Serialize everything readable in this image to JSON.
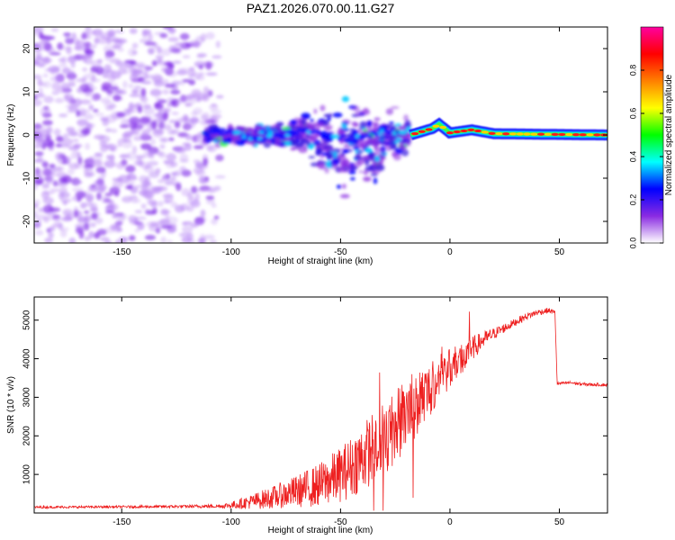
{
  "chart_data": [
    {
      "type": "heatmap",
      "title": "PAZ1.2026.070.00.11.G27",
      "xlabel": "Height of straight line (km)",
      "ylabel": "Frequency (Hz)",
      "xlim": [
        -190,
        72
      ],
      "ylim": [
        -25,
        25
      ],
      "xticks": [
        -150,
        -100,
        -50,
        0,
        50
      ],
      "yticks": [
        -20,
        -10,
        0,
        10,
        20
      ],
      "grid": false,
      "colorbar": {
        "label": "Normalized spectral amplitude",
        "range": [
          0,
          1
        ],
        "ticks": [
          0.0,
          0.2,
          0.4,
          0.6,
          0.8
        ],
        "tick_labels": [
          "0.0",
          "0.2",
          "0.4",
          "0.6",
          "0.8"
        ],
        "colormap": [
          "#ffffff",
          "#8a2be2",
          "#0000ff",
          "#00ffff",
          "#00ff00",
          "#ffff00",
          "#ff8000",
          "#ff0000",
          "#ff00a0"
        ]
      },
      "features": {
        "noise_region_km": [
          -190,
          -115
        ],
        "noise_amplitude": 0.1,
        "turbulent_region_km": [
          -112,
          -18
        ],
        "turbulent_amplitude": 0.35,
        "carrier_line_region_km": [
          -18,
          72
        ],
        "carrier_line_freq_hz": [
          [
            -18,
            0.0
          ],
          [
            -8,
            1.5
          ],
          [
            -5,
            2.5
          ],
          [
            0,
            0.5
          ],
          [
            10,
            1.2
          ],
          [
            20,
            0.3
          ],
          [
            72,
            0.0
          ]
        ],
        "carrier_amplitude": 0.85
      }
    },
    {
      "type": "line",
      "xlabel": "Height of straight line (km)",
      "ylabel": "SNR (10 * v/v)",
      "xlim": [
        -190,
        72
      ],
      "ylim": [
        0,
        5600
      ],
      "xticks": [
        -150,
        -100,
        -50,
        0,
        50
      ],
      "yticks": [
        1000,
        2000,
        3000,
        4000,
        5000
      ],
      "grid": false,
      "series": [
        {
          "name": "SNR",
          "color": "#ee2020",
          "x": [
            -190,
            -150,
            -120,
            -105,
            -100,
            -90,
            -80,
            -70,
            -60,
            -50,
            -45,
            -40,
            -35,
            -30,
            -25,
            -20,
            -15,
            -10,
            -5,
            0,
            5,
            10,
            15,
            20,
            25,
            30,
            35,
            40,
            45,
            48,
            49,
            55,
            60,
            65,
            72
          ],
          "baseline": [
            150,
            160,
            170,
            180,
            200,
            300,
            420,
            560,
            720,
            1000,
            1200,
            1450,
            1700,
            1950,
            2250,
            2550,
            2850,
            3150,
            3450,
            3750,
            4000,
            4250,
            4480,
            4650,
            4800,
            4950,
            5100,
            5200,
            5250,
            5200,
            3350,
            3380,
            3340,
            3330,
            3320
          ],
          "noise": [
            30,
            30,
            40,
            50,
            90,
            200,
            300,
            420,
            560,
            720,
            800,
            880,
            940,
            980,
            1000,
            950,
            850,
            750,
            600,
            500,
            420,
            320,
            220,
            150,
            120,
            100,
            90,
            80,
            70,
            60,
            40,
            40,
            40,
            40,
            40
          ]
        }
      ]
    }
  ]
}
